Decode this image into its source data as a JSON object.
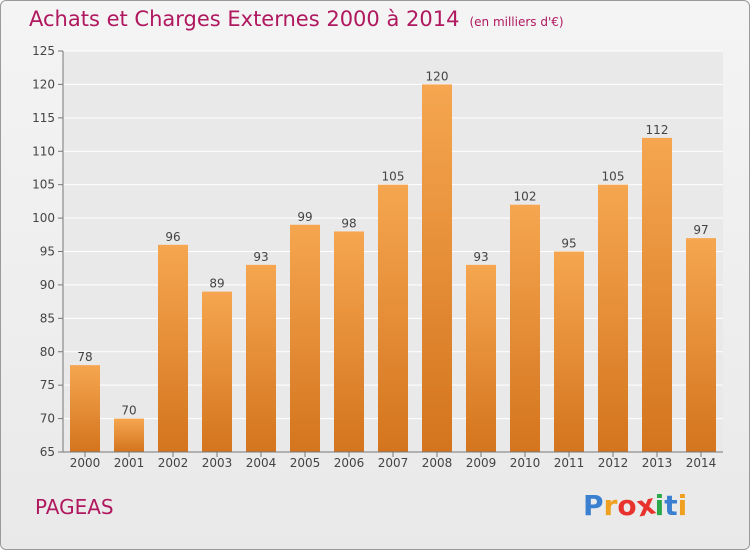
{
  "header": {
    "title": "Achats et Charges Externes 2000 à 2014",
    "subtitle": "(en milliers d'€)"
  },
  "footer": {
    "commune": "PAGEAS",
    "brand_letters": [
      "P",
      "r",
      "o",
      "x",
      "i",
      "t",
      "i"
    ],
    "brand_colors": [
      "#3a7fd0",
      "#f0a020",
      "#e8322e",
      "#e8322e",
      "#2aa84a",
      "#3a7fd0",
      "#f0a020"
    ]
  },
  "chart_data": {
    "type": "bar",
    "title": "Achats et Charges Externes 2000 à 2014",
    "subtitle": "(en milliers d'€)",
    "categories": [
      "2000",
      "2001",
      "2002",
      "2003",
      "2004",
      "2005",
      "2006",
      "2007",
      "2008",
      "2009",
      "2010",
      "2011",
      "2012",
      "2013",
      "2014"
    ],
    "values": [
      78,
      70,
      96,
      89,
      93,
      99,
      98,
      105,
      120,
      93,
      102,
      95,
      105,
      112,
      97
    ],
    "ylim": [
      65,
      125
    ],
    "yticks": [
      65,
      70,
      75,
      80,
      85,
      90,
      95,
      100,
      105,
      110,
      115,
      120,
      125
    ],
    "grid": true,
    "bar_color_top": "#f6a650",
    "bar_color_bottom": "#d4741e"
  }
}
